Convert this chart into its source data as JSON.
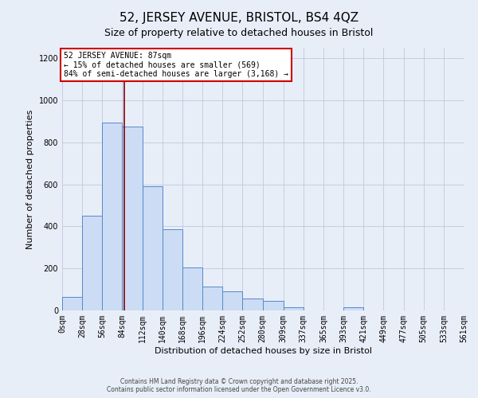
{
  "title": "52, JERSEY AVENUE, BRISTOL, BS4 4QZ",
  "subtitle": "Size of property relative to detached houses in Bristol",
  "xlabel": "Distribution of detached houses by size in Bristol",
  "ylabel": "Number of detached properties",
  "bin_edges": [
    0,
    28,
    56,
    84,
    112,
    140,
    168,
    196,
    224,
    252,
    280,
    309,
    337,
    365,
    393,
    421,
    449,
    477,
    505,
    533,
    561
  ],
  "bar_heights": [
    65,
    450,
    895,
    875,
    590,
    385,
    205,
    115,
    90,
    55,
    45,
    15,
    0,
    0,
    15,
    0,
    0,
    0,
    0,
    0
  ],
  "bar_color": "#ccdcf4",
  "bar_edge_color": "#5588cc",
  "property_size": 87,
  "marker_line_color": "#880000",
  "annotation_title": "52 JERSEY AVENUE: 87sqm",
  "annotation_line1": "← 15% of detached houses are smaller (569)",
  "annotation_line2": "84% of semi-detached houses are larger (3,168) →",
  "annotation_box_color": "#ffffff",
  "annotation_box_edge": "#cc0000",
  "ylim": [
    0,
    1250
  ],
  "yticks": [
    0,
    200,
    400,
    600,
    800,
    1000,
    1200
  ],
  "grid_color": "#c0c8dc",
  "background_color": "#e8eef8",
  "footer1": "Contains HM Land Registry data © Crown copyright and database right 2025.",
  "footer2": "Contains public sector information licensed under the Open Government Licence v3.0.",
  "title_fontsize": 11,
  "subtitle_fontsize": 9,
  "axis_label_fontsize": 8,
  "tick_fontsize": 7,
  "annotation_fontsize": 7,
  "footer_fontsize": 5.5
}
